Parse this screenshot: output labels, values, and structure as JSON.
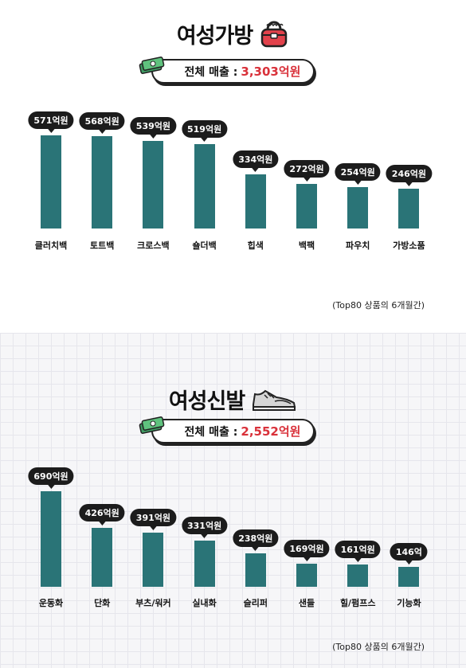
{
  "colors": {
    "bar": "#2a7477",
    "accent": "#d9313a",
    "bubble": "#1c1c1c"
  },
  "chart_data": [
    {
      "type": "bar",
      "title": "여성가방",
      "total_label": "전체 매출 :",
      "total_value": "3,303억원",
      "icon": "handbag-icon",
      "categories": [
        "클러치백",
        "토트백",
        "크로스백",
        "숄더백",
        "힙색",
        "백팩",
        "파우치",
        "가방소품"
      ],
      "values": [
        571,
        568,
        539,
        519,
        334,
        272,
        254,
        246
      ],
      "value_labels": [
        "571억원",
        "568억원",
        "539억원",
        "519억원",
        "334억원",
        "272억원",
        "254억원",
        "246억원"
      ],
      "note": "(Top80 상품의 6개월간)"
    },
    {
      "type": "bar",
      "title": "여성신발",
      "total_label": "전체 매출 :",
      "total_value": "2,552억원",
      "icon": "sneaker-icon",
      "categories": [
        "운동화",
        "단화",
        "부츠/워커",
        "실내화",
        "슬리퍼",
        "샌들",
        "힐/펌프스",
        "기능화"
      ],
      "values": [
        690,
        426,
        391,
        331,
        238,
        169,
        161,
        146
      ],
      "value_labels": [
        "690억원",
        "426억원",
        "391억원",
        "331억원",
        "238억원",
        "169억원",
        "161억원",
        "146억"
      ],
      "note": "(Top80 상품의 6개월간)"
    }
  ]
}
